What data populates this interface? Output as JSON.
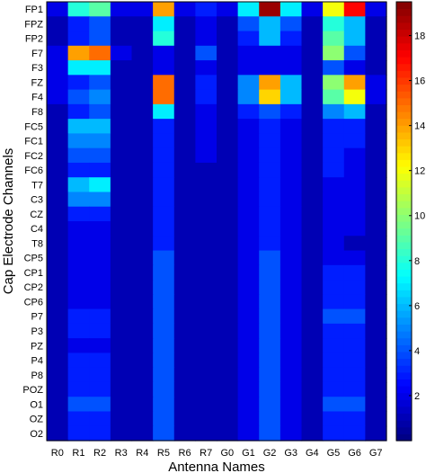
{
  "chart_data": {
    "type": "heatmap",
    "title": "",
    "xlabel": "Antenna Names",
    "ylabel": "Cap Electrode Channels",
    "x_categories": [
      "R0",
      "R1",
      "R2",
      "R3",
      "R4",
      "R5",
      "R6",
      "R7",
      "G0",
      "G1",
      "G2",
      "G3",
      "G4",
      "G5",
      "G6",
      "G7"
    ],
    "y_categories": [
      "FP1",
      "FPZ",
      "FP2",
      "F7",
      "F3",
      "FZ",
      "F4",
      "F8",
      "FC5",
      "FC1",
      "FC2",
      "FC6",
      "T7",
      "C3",
      "CZ",
      "C4",
      "T8",
      "CP5",
      "CP1",
      "CP2",
      "CP6",
      "P7",
      "P3",
      "PZ",
      "P4",
      "P8",
      "POZ",
      "O1",
      "OZ",
      "O2"
    ],
    "colorbar": {
      "min": 0,
      "max": 19.5,
      "ticks": [
        2,
        4,
        6,
        8,
        10,
        12,
        14,
        16,
        18
      ]
    },
    "values": [
      [
        2,
        8,
        9,
        2,
        2,
        14,
        2,
        3,
        2,
        7,
        19,
        7,
        2,
        12,
        17,
        2
      ],
      [
        1,
        3,
        4,
        1,
        1,
        7,
        1,
        2,
        1,
        4,
        6,
        4,
        1,
        8,
        6,
        1
      ],
      [
        1,
        3,
        4,
        1,
        1,
        8,
        1,
        2,
        1,
        3,
        6,
        3,
        1,
        9,
        6,
        1
      ],
      [
        2,
        14,
        15,
        2,
        1,
        2,
        1,
        4,
        1,
        2,
        2,
        2,
        1,
        10,
        4,
        1
      ],
      [
        2,
        7,
        7,
        1,
        1,
        2,
        1,
        2,
        1,
        2,
        2,
        2,
        1,
        4,
        2,
        1
      ],
      [
        2,
        3,
        4,
        1,
        1,
        15,
        1,
        3,
        1,
        5,
        14,
        6,
        1,
        10,
        14,
        2
      ],
      [
        2,
        4,
        5,
        1,
        1,
        15,
        1,
        3,
        1,
        5,
        13,
        6,
        1,
        9,
        12,
        2
      ],
      [
        1,
        3,
        4,
        1,
        1,
        7,
        1,
        2,
        1,
        3,
        4,
        3,
        1,
        5,
        6,
        1
      ],
      [
        1,
        6,
        6,
        1,
        1,
        3,
        1,
        2,
        1,
        2,
        3,
        2,
        1,
        3,
        3,
        1
      ],
      [
        1,
        5,
        5,
        1,
        1,
        3,
        1,
        2,
        1,
        2,
        3,
        2,
        1,
        3,
        3,
        1
      ],
      [
        1,
        4,
        4,
        1,
        1,
        3,
        1,
        2,
        1,
        2,
        3,
        2,
        1,
        3,
        2,
        1
      ],
      [
        1,
        3,
        3,
        1,
        1,
        3,
        1,
        1,
        1,
        2,
        3,
        2,
        1,
        3,
        2,
        1
      ],
      [
        1,
        6,
        7,
        1,
        1,
        3,
        1,
        1,
        1,
        2,
        3,
        2,
        1,
        2,
        2,
        1
      ],
      [
        1,
        5,
        5,
        1,
        1,
        3,
        1,
        1,
        1,
        2,
        3,
        2,
        1,
        2,
        2,
        1
      ],
      [
        1,
        3,
        3,
        1,
        1,
        3,
        1,
        1,
        1,
        2,
        3,
        2,
        1,
        2,
        2,
        1
      ],
      [
        1,
        2,
        2,
        1,
        1,
        3,
        1,
        1,
        1,
        2,
        3,
        2,
        1,
        2,
        2,
        1
      ],
      [
        1,
        2,
        2,
        1,
        1,
        3,
        1,
        1,
        1,
        2,
        3,
        2,
        1,
        2,
        1,
        1
      ],
      [
        1,
        2,
        2,
        1,
        1,
        4,
        1,
        1,
        1,
        2,
        4,
        2,
        1,
        2,
        2,
        1
      ],
      [
        1,
        2,
        2,
        1,
        1,
        4,
        1,
        1,
        1,
        2,
        4,
        2,
        1,
        3,
        3,
        1
      ],
      [
        1,
        2,
        2,
        1,
        1,
        4,
        1,
        1,
        1,
        2,
        4,
        2,
        1,
        3,
        3,
        1
      ],
      [
        1,
        2,
        2,
        1,
        1,
        4,
        1,
        1,
        1,
        2,
        4,
        2,
        1,
        3,
        3,
        1
      ],
      [
        1,
        3,
        3,
        1,
        1,
        4,
        1,
        1,
        1,
        2,
        4,
        2,
        1,
        4,
        4,
        1
      ],
      [
        1,
        3,
        3,
        1,
        1,
        4,
        1,
        1,
        1,
        2,
        4,
        2,
        1,
        3,
        3,
        1
      ],
      [
        1,
        2,
        2,
        1,
        1,
        4,
        1,
        1,
        1,
        2,
        4,
        2,
        1,
        3,
        3,
        1
      ],
      [
        1,
        3,
        3,
        1,
        1,
        4,
        1,
        1,
        1,
        2,
        4,
        2,
        1,
        3,
        3,
        1
      ],
      [
        1,
        3,
        3,
        1,
        1,
        4,
        1,
        1,
        1,
        2,
        4,
        2,
        1,
        3,
        3,
        1
      ],
      [
        1,
        3,
        3,
        1,
        1,
        4,
        1,
        1,
        1,
        2,
        4,
        2,
        1,
        3,
        3,
        1
      ],
      [
        1,
        4,
        4,
        1,
        1,
        4,
        1,
        1,
        1,
        2,
        4,
        2,
        1,
        4,
        4,
        1
      ],
      [
        1,
        3,
        3,
        1,
        1,
        4,
        1,
        1,
        1,
        2,
        4,
        2,
        1,
        3,
        3,
        1
      ],
      [
        1,
        3,
        3,
        1,
        1,
        4,
        1,
        1,
        1,
        2,
        4,
        2,
        1,
        3,
        3,
        1
      ]
    ]
  }
}
